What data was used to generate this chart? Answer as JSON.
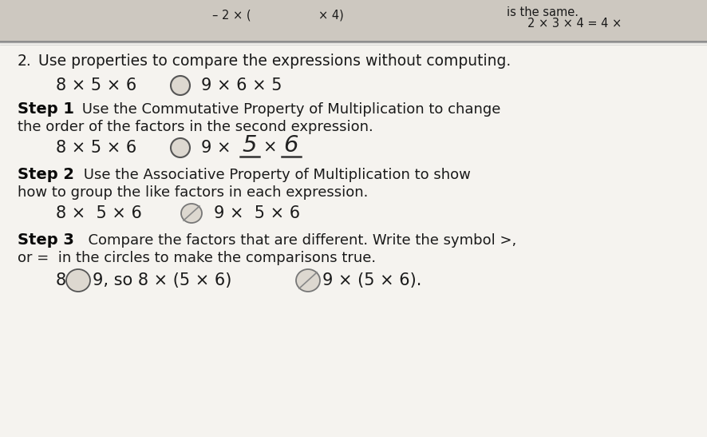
{
  "bg_color": "#e8e4de",
  "white_area_color": "#f5f3ef",
  "top_section_color": "#cdc8c0",
  "text_color": "#1a1a1a",
  "bold_color": "#0a0a0a",
  "circle_fill": "#e8e4de",
  "circle_edge": "#555555",
  "line_color": "#444444",
  "top_bar_height": 52,
  "top_texts": {
    "center_left": "– 2 × (",
    "center": "× 4)",
    "right_top": "is the same.",
    "right_bottom": "2 × 3 × 4 = 4 ×"
  },
  "problem_num": "2.",
  "problem_text": "Use properties to compare the expressions without computing.",
  "expr1_left": "8 × 5 × 6",
  "expr1_right": "9 × 6 × 5",
  "step1_bold": "Step 1",
  "step1_text_a": " Use the Commutative Property of Multiplication to change",
  "step1_text_b": "the order of the factors in the second expression.",
  "step1_left": "8 × 5 × 6",
  "step1_right_prefix": "9 ×",
  "step1_hw5": "5",
  "step1_hw6": "6",
  "step2_bold": "Step 2",
  "step2_text_a": " Use the Associative Property of Multiplication to show",
  "step2_text_b": "how to group the like factors in each expression.",
  "step2_left": "8 ×  5 × 6",
  "step2_right": "9 ×  5 × 6",
  "step3_bold": "Step 3",
  "step3_text_a": "  Compare the factors that are different. Write the symbol >,",
  "step3_text_b": "or =  in the circles to make the comparisons true.",
  "step3_left": "9, so 8 × (5 × 6)",
  "step3_right": "9 × (5 × 6)."
}
